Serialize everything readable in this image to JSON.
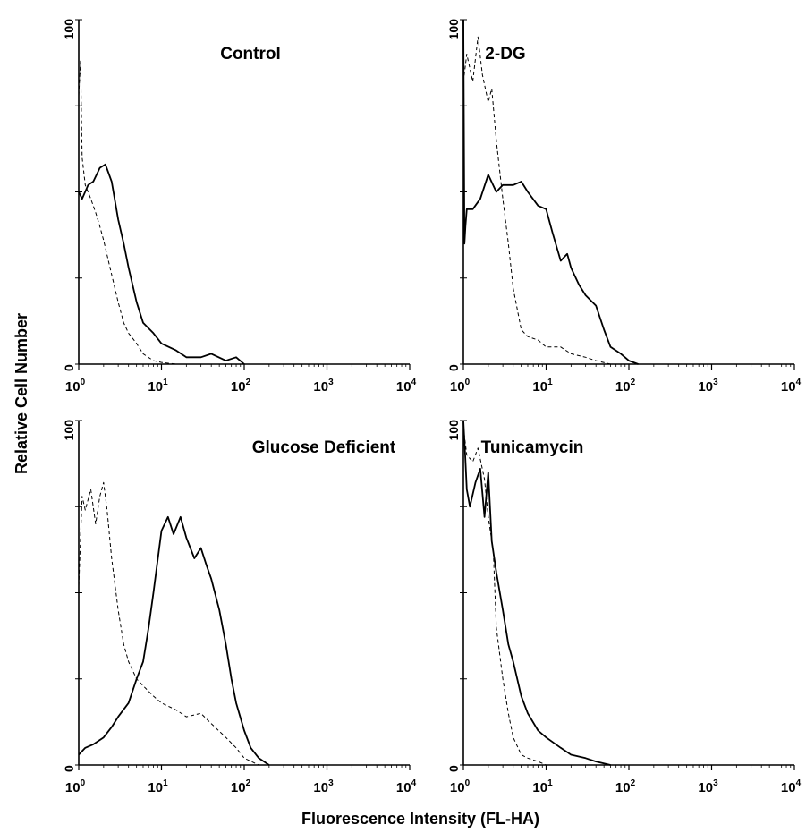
{
  "figure": {
    "xlabel": "Fluorescence Intensity (FL-HA)",
    "ylabel": "Relative Cell Number"
  },
  "chart_data": [
    {
      "type": "line",
      "title": "Control",
      "x_scale": "log",
      "xlim": [
        1,
        10000
      ],
      "ylim": [
        0,
        100
      ],
      "x_ticks": [
        "10^0",
        "10^1",
        "10^2",
        "10^3",
        "10^4"
      ],
      "y_ticks": [
        "0",
        "100"
      ],
      "series": [
        {
          "style": "solid",
          "x": [
            1,
            1.1,
            1.3,
            1.5,
            1.8,
            2.1,
            2.5,
            3,
            3.5,
            4,
            5,
            6,
            8,
            10,
            15,
            20,
            30,
            40,
            60,
            80,
            100
          ],
          "y": [
            50,
            48,
            52,
            53,
            57,
            58,
            53,
            42,
            35,
            28,
            18,
            12,
            9,
            6,
            4,
            2,
            2,
            3,
            1,
            2,
            0
          ]
        },
        {
          "style": "dashed",
          "x": [
            1,
            1.05,
            1.1,
            1.2,
            1.4,
            1.6,
            1.8,
            2,
            2.5,
            3,
            3.5,
            4,
            5,
            6,
            8,
            10,
            15
          ],
          "y": [
            78,
            88,
            60,
            52,
            48,
            44,
            40,
            36,
            26,
            18,
            12,
            9,
            6,
            3,
            1,
            0.5,
            0
          ]
        }
      ]
    },
    {
      "type": "line",
      "title": "2-DG",
      "x_scale": "log",
      "xlim": [
        1,
        10000
      ],
      "ylim": [
        0,
        100
      ],
      "x_ticks": [
        "10^0",
        "10^1",
        "10^2",
        "10^3",
        "10^4"
      ],
      "y_ticks": [
        "0",
        "100"
      ],
      "series": [
        {
          "style": "solid",
          "x": [
            1,
            1.03,
            1.06,
            1.1,
            1.3,
            1.6,
            2,
            2.5,
            3,
            4,
            5,
            6,
            8,
            10,
            12,
            15,
            18,
            20,
            25,
            30,
            40,
            50,
            60,
            80,
            100,
            130
          ],
          "y": [
            100,
            35,
            40,
            45,
            45,
            48,
            55,
            50,
            52,
            52,
            53,
            50,
            46,
            45,
            38,
            30,
            32,
            28,
            23,
            20,
            17,
            10,
            5,
            3,
            1,
            0
          ]
        },
        {
          "style": "dashed",
          "x": [
            1,
            1.1,
            1.3,
            1.5,
            1.7,
            2,
            2.2,
            2.5,
            3,
            3.5,
            4,
            5,
            6,
            8,
            10,
            15,
            20,
            30,
            40,
            60
          ],
          "y": [
            82,
            90,
            82,
            95,
            84,
            76,
            80,
            65,
            48,
            35,
            22,
            10,
            8,
            7,
            5,
            5,
            3,
            2,
            1,
            0
          ]
        }
      ]
    },
    {
      "type": "line",
      "title": "Glucose Deficient",
      "x_scale": "log",
      "xlim": [
        1,
        10000
      ],
      "ylim": [
        0,
        100
      ],
      "x_ticks": [
        "10^0",
        "10^1",
        "10^2",
        "10^3",
        "10^4"
      ],
      "y_ticks": [
        "0",
        "100"
      ],
      "series": [
        {
          "style": "solid",
          "x": [
            1,
            1.2,
            1.5,
            2,
            2.5,
            3,
            4,
            5,
            6,
            7,
            8,
            10,
            12,
            14,
            17,
            20,
            25,
            30,
            35,
            40,
            50,
            60,
            70,
            80,
            100,
            120,
            150,
            200
          ],
          "y": [
            3,
            5,
            6,
            8,
            11,
            14,
            18,
            25,
            30,
            40,
            50,
            68,
            72,
            67,
            72,
            66,
            60,
            63,
            58,
            54,
            45,
            35,
            25,
            18,
            10,
            5,
            2,
            0
          ]
        },
        {
          "style": "dashed",
          "x": [
            1,
            1.1,
            1.2,
            1.4,
            1.6,
            1.8,
            2,
            2.2,
            2.5,
            3,
            3.5,
            4,
            5,
            6,
            8,
            10,
            15,
            20,
            30,
            40,
            60,
            80,
            100,
            150
          ],
          "y": [
            52,
            78,
            74,
            80,
            70,
            78,
            82,
            74,
            60,
            45,
            35,
            30,
            25,
            23,
            20,
            18,
            16,
            14,
            15,
            12,
            8,
            5,
            2,
            0
          ]
        }
      ]
    },
    {
      "type": "line",
      "title": "Tunicamycin",
      "x_scale": "log",
      "xlim": [
        1,
        10000
      ],
      "ylim": [
        0,
        100
      ],
      "x_ticks": [
        "10^0",
        "10^1",
        "10^2",
        "10^3",
        "10^4"
      ],
      "y_ticks": [
        "0",
        "100"
      ],
      "series": [
        {
          "style": "solid",
          "x": [
            1,
            1.05,
            1.1,
            1.2,
            1.4,
            1.6,
            1.8,
            2,
            2.2,
            2.5,
            3,
            3.5,
            4,
            5,
            6,
            8,
            10,
            15,
            20,
            30,
            40,
            60
          ],
          "y": [
            100,
            90,
            80,
            75,
            82,
            86,
            72,
            85,
            65,
            56,
            45,
            35,
            30,
            20,
            15,
            10,
            8,
            5,
            3,
            2,
            1,
            0
          ]
        },
        {
          "style": "dashed",
          "x": [
            1,
            1.1,
            1.3,
            1.5,
            1.8,
            2,
            2.3,
            2.5,
            3,
            3.5,
            4,
            5,
            6,
            8,
            10
          ],
          "y": [
            98,
            90,
            88,
            92,
            83,
            72,
            62,
            40,
            25,
            15,
            8,
            3,
            2,
            1,
            0
          ]
        }
      ]
    }
  ]
}
